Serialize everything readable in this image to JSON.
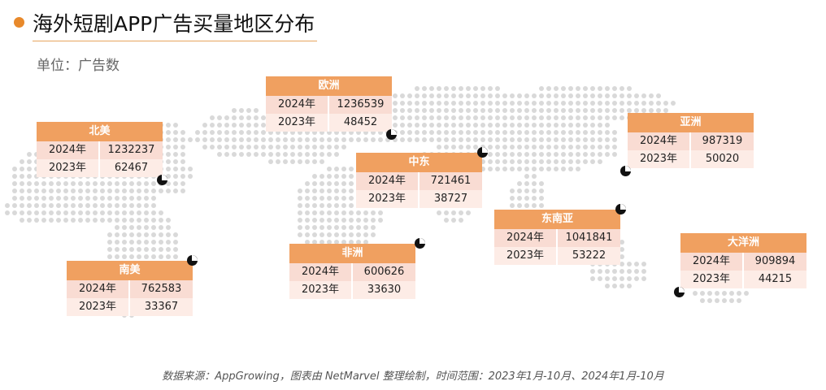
{
  "header": {
    "title": "海外短剧APP广告买量地区分布",
    "unit": "单位：广告数"
  },
  "footer": {
    "source": "数据来源：AppGrowing，图表由 NetMarvel 整理绘制，时间范围：2023年1月-10月、2024年1月-10月"
  },
  "colors": {
    "accent": "#E8892B",
    "header_fill": "#F0A060",
    "row_2024": "#F9DCD3",
    "row_2023": "#FDECE6",
    "map_dots": "#D9D9D9"
  },
  "chart_data": {
    "type": "table",
    "row_labels": [
      "2024年",
      "2023年"
    ],
    "regions": [
      {
        "name": "北美",
        "y2024": "1232237",
        "y2023": "62467"
      },
      {
        "name": "欧洲",
        "y2024": "1236539",
        "y2023": "48452"
      },
      {
        "name": "中东",
        "y2024": "721461",
        "y2023": "38727"
      },
      {
        "name": "亚洲",
        "y2024": "987319",
        "y2023": "50020"
      },
      {
        "name": "东南亚",
        "y2024": "1041841",
        "y2023": "53222"
      },
      {
        "name": "非洲",
        "y2024": "600626",
        "y2023": "33630"
      },
      {
        "name": "南美",
        "y2024": "762583",
        "y2023": "33367"
      },
      {
        "name": "大洋洲",
        "y2024": "909894",
        "y2023": "44215"
      }
    ]
  }
}
